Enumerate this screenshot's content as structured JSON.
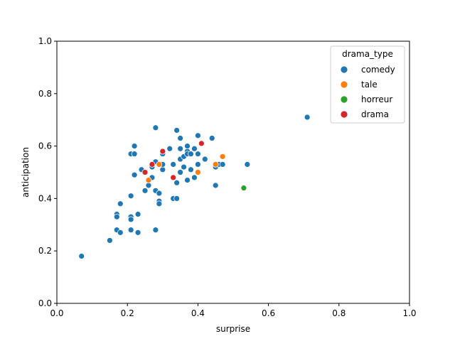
{
  "chart_data": {
    "type": "scatter",
    "xlabel": "surprise",
    "ylabel": "anticipation",
    "xlim": [
      0.0,
      1.0
    ],
    "ylim": [
      0.0,
      1.0
    ],
    "xticks": [
      "0.0",
      "0.2",
      "0.4",
      "0.6",
      "0.8",
      "1.0"
    ],
    "yticks": [
      "0.0",
      "0.2",
      "0.4",
      "0.6",
      "0.8",
      "1.0"
    ],
    "grid": false,
    "legend": {
      "title": "drama_type",
      "position": "top-right"
    },
    "series": [
      {
        "name": "comedy",
        "color": "#1f77b4",
        "points": [
          [
            0.07,
            0.18
          ],
          [
            0.15,
            0.24
          ],
          [
            0.17,
            0.34
          ],
          [
            0.17,
            0.33
          ],
          [
            0.17,
            0.28
          ],
          [
            0.18,
            0.27
          ],
          [
            0.18,
            0.38
          ],
          [
            0.21,
            0.41
          ],
          [
            0.21,
            0.57
          ],
          [
            0.22,
            0.6
          ],
          [
            0.22,
            0.57
          ],
          [
            0.22,
            0.49
          ],
          [
            0.21,
            0.33
          ],
          [
            0.21,
            0.32
          ],
          [
            0.21,
            0.28
          ],
          [
            0.23,
            0.34
          ],
          [
            0.23,
            0.27
          ],
          [
            0.24,
            0.51
          ],
          [
            0.25,
            0.43
          ],
          [
            0.26,
            0.45
          ],
          [
            0.27,
            0.48
          ],
          [
            0.27,
            0.52
          ],
          [
            0.28,
            0.67
          ],
          [
            0.28,
            0.54
          ],
          [
            0.28,
            0.43
          ],
          [
            0.29,
            0.42
          ],
          [
            0.29,
            0.39
          ],
          [
            0.29,
            0.38
          ],
          [
            0.28,
            0.28
          ],
          [
            0.3,
            0.57
          ],
          [
            0.3,
            0.51
          ],
          [
            0.3,
            0.53
          ],
          [
            0.32,
            0.59
          ],
          [
            0.33,
            0.53
          ],
          [
            0.33,
            0.4
          ],
          [
            0.34,
            0.66
          ],
          [
            0.34,
            0.46
          ],
          [
            0.34,
            0.4
          ],
          [
            0.35,
            0.63
          ],
          [
            0.35,
            0.55
          ],
          [
            0.35,
            0.5
          ],
          [
            0.35,
            0.59
          ],
          [
            0.36,
            0.56
          ],
          [
            0.36,
            0.52
          ],
          [
            0.37,
            0.58
          ],
          [
            0.37,
            0.57
          ],
          [
            0.37,
            0.6
          ],
          [
            0.37,
            0.47
          ],
          [
            0.38,
            0.51
          ],
          [
            0.38,
            0.57
          ],
          [
            0.39,
            0.59
          ],
          [
            0.39,
            0.48
          ],
          [
            0.4,
            0.64
          ],
          [
            0.4,
            0.57
          ],
          [
            0.4,
            0.53
          ],
          [
            0.42,
            0.55
          ],
          [
            0.44,
            0.63
          ],
          [
            0.45,
            0.52
          ],
          [
            0.46,
            0.53
          ],
          [
            0.47,
            0.53
          ],
          [
            0.45,
            0.45
          ],
          [
            0.54,
            0.53
          ],
          [
            0.71,
            0.71
          ]
        ]
      },
      {
        "name": "tale",
        "color": "#ff7f0e",
        "points": [
          [
            0.26,
            0.47
          ],
          [
            0.29,
            0.53
          ],
          [
            0.4,
            0.5
          ],
          [
            0.45,
            0.53
          ],
          [
            0.47,
            0.56
          ]
        ]
      },
      {
        "name": "horreur",
        "color": "#2ca02c",
        "points": [
          [
            0.53,
            0.44
          ]
        ]
      },
      {
        "name": "drama",
        "color": "#d62728",
        "points": [
          [
            0.25,
            0.5
          ],
          [
            0.27,
            0.53
          ],
          [
            0.3,
            0.58
          ],
          [
            0.33,
            0.48
          ],
          [
            0.41,
            0.61
          ]
        ]
      }
    ]
  }
}
